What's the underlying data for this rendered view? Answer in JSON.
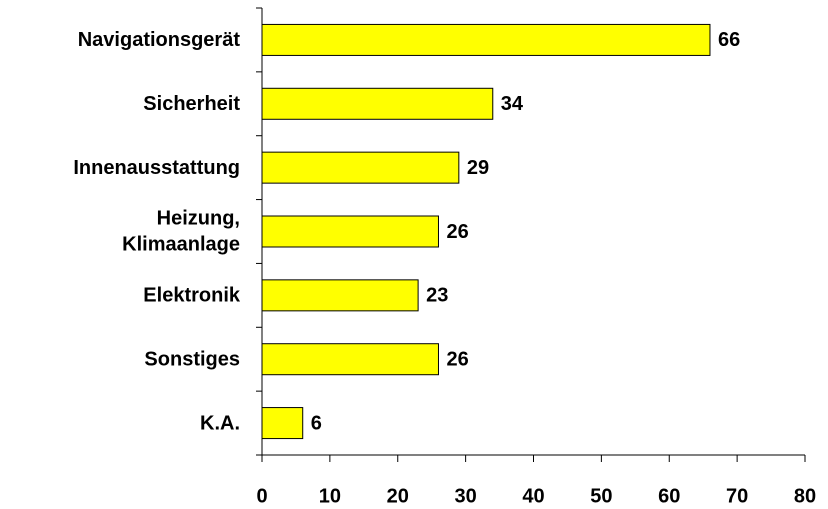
{
  "chart_data": {
    "type": "bar",
    "orientation": "horizontal",
    "categories": [
      "Navigationsgerät",
      "Sicherheit",
      "Innenausstattung",
      "Heizung,\nKlimaanlage",
      "Elektronik",
      "Sonstiges",
      "K.A."
    ],
    "values": [
      66,
      34,
      29,
      26,
      23,
      26,
      6
    ],
    "color": "#ffff00",
    "xlim": [
      0,
      80
    ],
    "xticks": [
      0,
      10,
      20,
      30,
      40,
      50,
      60,
      70,
      80
    ],
    "grid": false
  }
}
